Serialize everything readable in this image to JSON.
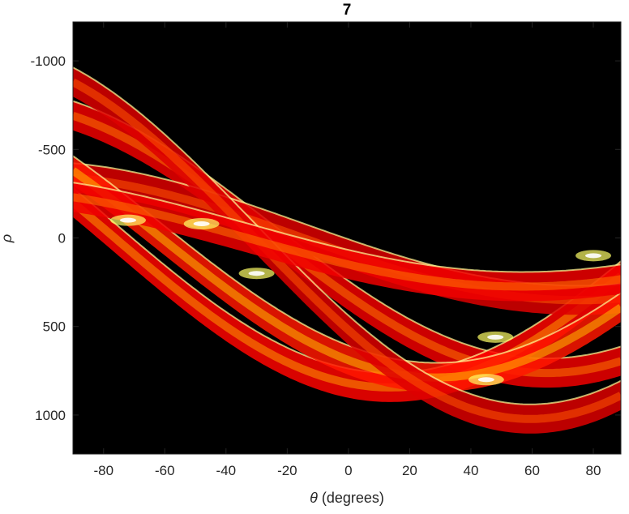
{
  "chart_data": {
    "type": "heatmap",
    "title": "7",
    "xlabel_symbol": "θ",
    "xlabel_text": " (degrees)",
    "ylabel": "ρ",
    "xlim": [
      -90,
      89
    ],
    "ylim": [
      -1220,
      1220
    ],
    "y_reversed": true,
    "x_ticks": [
      -80,
      -60,
      -40,
      -20,
      0,
      20,
      40,
      60,
      80
    ],
    "y_ticks": [
      -1000,
      -500,
      0,
      500,
      1000
    ],
    "grid": false,
    "colormap": "hot",
    "background_color": "#000000",
    "series": [
      {
        "x0": 325,
        "y0": 690,
        "intensity": 0.55
      },
      {
        "x0": 820,
        "y0": 200,
        "intensity": 0.6
      },
      {
        "x0": 90,
        "y0": 340,
        "intensity": 0.5
      },
      {
        "x0": 690,
        "y0": 380,
        "intensity": 0.65
      },
      {
        "x0": 520,
        "y0": 880,
        "intensity": 0.5
      },
      {
        "x0": 150,
        "y0": 230,
        "intensity": 0.55
      }
    ],
    "band_width": 165,
    "intersections": [
      {
        "x": -72,
        "y": -100
      },
      {
        "x": -48,
        "y": -80
      },
      {
        "x": -30,
        "y": 200
      },
      {
        "x": 48,
        "y": 560
      },
      {
        "x": 45,
        "y": 800
      },
      {
        "x": 80,
        "y": 100
      }
    ]
  }
}
